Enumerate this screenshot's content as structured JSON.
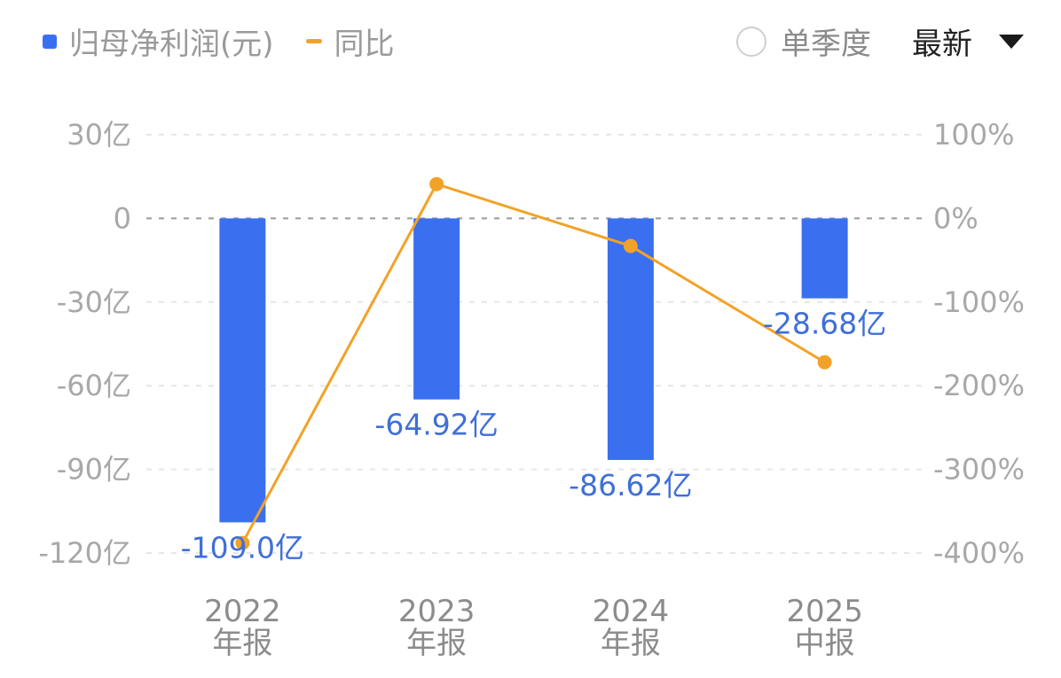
{
  "legend": {
    "bar_label": "归母净利润(元)",
    "line_label": "同比"
  },
  "controls": {
    "quarter_label": "单季度",
    "dropdown_label": "最新"
  },
  "colors": {
    "bar": "#3a6ff0",
    "line": "#f2a228",
    "label": "#3f6fd8",
    "grid": "#e6e6e6",
    "zero": "#9a9a9a"
  },
  "chart_data": {
    "type": "bar",
    "categories": [
      [
        "2022",
        "年报"
      ],
      [
        "2023",
        "年报"
      ],
      [
        "2024",
        "年报"
      ],
      [
        "2025",
        "中报"
      ]
    ],
    "series": [
      {
        "name": "归母净利润(元)",
        "type": "bar",
        "axis": "left",
        "values": [
          -109.0,
          -64.92,
          -86.62,
          -28.68
        ],
        "labels": [
          "-109.0亿",
          "-64.92亿",
          "-86.62亿",
          "-28.68亿"
        ]
      },
      {
        "name": "同比",
        "type": "line",
        "axis": "right",
        "values": [
          -388,
          41,
          -33,
          -172
        ]
      }
    ],
    "y_left": {
      "ticks": [
        30,
        0,
        -30,
        -60,
        -90,
        -120
      ],
      "tick_labels": [
        "30亿",
        "0",
        "-30亿",
        "-60亿",
        "-90亿",
        "-120亿"
      ],
      "ylim": [
        -120,
        30
      ]
    },
    "y_right": {
      "ticks": [
        100,
        0,
        -100,
        -200,
        -300,
        -400
      ],
      "tick_labels": [
        "100%",
        "0%",
        "-100%",
        "-200%",
        "-300%",
        "-400%"
      ],
      "ylim": [
        -400,
        100
      ]
    },
    "grid": true,
    "legend_position": "top-left"
  }
}
